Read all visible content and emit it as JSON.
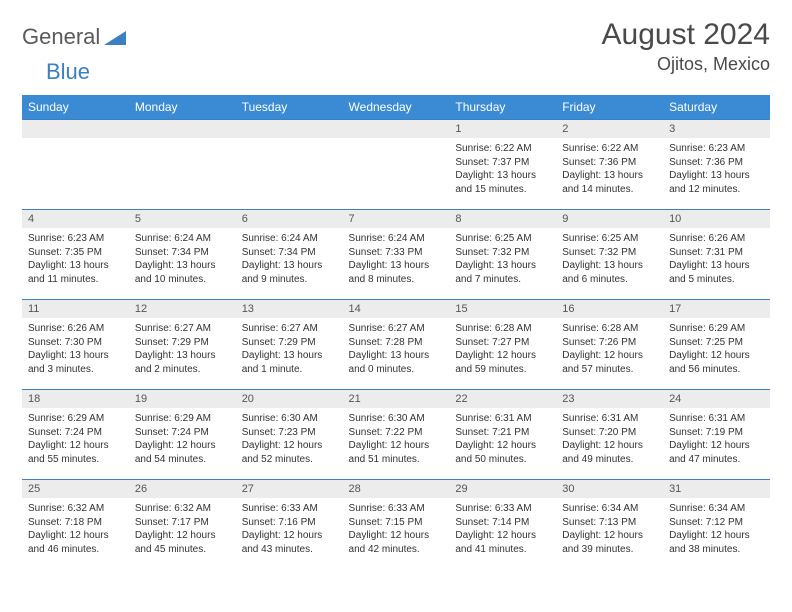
{
  "brand": {
    "part1": "General",
    "part2": "Blue"
  },
  "title": "August 2024",
  "location": "Ojitos, Mexico",
  "colors": {
    "header_bg": "#3b8bd4",
    "header_text": "#ffffff",
    "cell_border": "#3b7fc4",
    "daynum_bg": "#ececec",
    "text": "#333333",
    "title_text": "#4a4a4a"
  },
  "dow": [
    "Sunday",
    "Monday",
    "Tuesday",
    "Wednesday",
    "Thursday",
    "Friday",
    "Saturday"
  ],
  "weeks": [
    [
      null,
      null,
      null,
      null,
      {
        "n": "1",
        "sr": "6:22 AM",
        "ss": "7:37 PM",
        "dl": "13 hours and 15 minutes."
      },
      {
        "n": "2",
        "sr": "6:22 AM",
        "ss": "7:36 PM",
        "dl": "13 hours and 14 minutes."
      },
      {
        "n": "3",
        "sr": "6:23 AM",
        "ss": "7:36 PM",
        "dl": "13 hours and 12 minutes."
      }
    ],
    [
      {
        "n": "4",
        "sr": "6:23 AM",
        "ss": "7:35 PM",
        "dl": "13 hours and 11 minutes."
      },
      {
        "n": "5",
        "sr": "6:24 AM",
        "ss": "7:34 PM",
        "dl": "13 hours and 10 minutes."
      },
      {
        "n": "6",
        "sr": "6:24 AM",
        "ss": "7:34 PM",
        "dl": "13 hours and 9 minutes."
      },
      {
        "n": "7",
        "sr": "6:24 AM",
        "ss": "7:33 PM",
        "dl": "13 hours and 8 minutes."
      },
      {
        "n": "8",
        "sr": "6:25 AM",
        "ss": "7:32 PM",
        "dl": "13 hours and 7 minutes."
      },
      {
        "n": "9",
        "sr": "6:25 AM",
        "ss": "7:32 PM",
        "dl": "13 hours and 6 minutes."
      },
      {
        "n": "10",
        "sr": "6:26 AM",
        "ss": "7:31 PM",
        "dl": "13 hours and 5 minutes."
      }
    ],
    [
      {
        "n": "11",
        "sr": "6:26 AM",
        "ss": "7:30 PM",
        "dl": "13 hours and 3 minutes."
      },
      {
        "n": "12",
        "sr": "6:27 AM",
        "ss": "7:29 PM",
        "dl": "13 hours and 2 minutes."
      },
      {
        "n": "13",
        "sr": "6:27 AM",
        "ss": "7:29 PM",
        "dl": "13 hours and 1 minute."
      },
      {
        "n": "14",
        "sr": "6:27 AM",
        "ss": "7:28 PM",
        "dl": "13 hours and 0 minutes."
      },
      {
        "n": "15",
        "sr": "6:28 AM",
        "ss": "7:27 PM",
        "dl": "12 hours and 59 minutes."
      },
      {
        "n": "16",
        "sr": "6:28 AM",
        "ss": "7:26 PM",
        "dl": "12 hours and 57 minutes."
      },
      {
        "n": "17",
        "sr": "6:29 AM",
        "ss": "7:25 PM",
        "dl": "12 hours and 56 minutes."
      }
    ],
    [
      {
        "n": "18",
        "sr": "6:29 AM",
        "ss": "7:24 PM",
        "dl": "12 hours and 55 minutes."
      },
      {
        "n": "19",
        "sr": "6:29 AM",
        "ss": "7:24 PM",
        "dl": "12 hours and 54 minutes."
      },
      {
        "n": "20",
        "sr": "6:30 AM",
        "ss": "7:23 PM",
        "dl": "12 hours and 52 minutes."
      },
      {
        "n": "21",
        "sr": "6:30 AM",
        "ss": "7:22 PM",
        "dl": "12 hours and 51 minutes."
      },
      {
        "n": "22",
        "sr": "6:31 AM",
        "ss": "7:21 PM",
        "dl": "12 hours and 50 minutes."
      },
      {
        "n": "23",
        "sr": "6:31 AM",
        "ss": "7:20 PM",
        "dl": "12 hours and 49 minutes."
      },
      {
        "n": "24",
        "sr": "6:31 AM",
        "ss": "7:19 PM",
        "dl": "12 hours and 47 minutes."
      }
    ],
    [
      {
        "n": "25",
        "sr": "6:32 AM",
        "ss": "7:18 PM",
        "dl": "12 hours and 46 minutes."
      },
      {
        "n": "26",
        "sr": "6:32 AM",
        "ss": "7:17 PM",
        "dl": "12 hours and 45 minutes."
      },
      {
        "n": "27",
        "sr": "6:33 AM",
        "ss": "7:16 PM",
        "dl": "12 hours and 43 minutes."
      },
      {
        "n": "28",
        "sr": "6:33 AM",
        "ss": "7:15 PM",
        "dl": "12 hours and 42 minutes."
      },
      {
        "n": "29",
        "sr": "6:33 AM",
        "ss": "7:14 PM",
        "dl": "12 hours and 41 minutes."
      },
      {
        "n": "30",
        "sr": "6:34 AM",
        "ss": "7:13 PM",
        "dl": "12 hours and 39 minutes."
      },
      {
        "n": "31",
        "sr": "6:34 AM",
        "ss": "7:12 PM",
        "dl": "12 hours and 38 minutes."
      }
    ]
  ]
}
